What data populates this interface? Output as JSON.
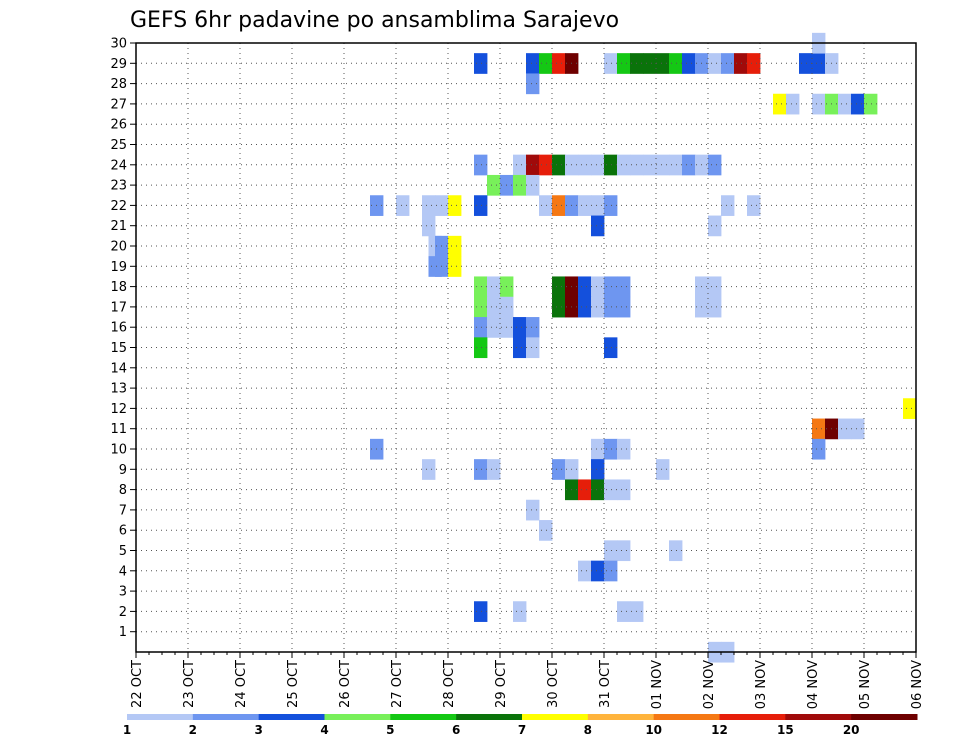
{
  "chart_data": {
    "type": "heatmap",
    "title": "GEFS 6hr padavine po ansamblima Sarajevo",
    "x_tick_labels": [
      "22 OCT",
      "23 OCT",
      "24 OCT",
      "25 OCT",
      "26 OCT",
      "27 OCT",
      "28 OCT",
      "29 OCT",
      "30 OCT",
      "31 OCT",
      "01 NOV",
      "02 NOV",
      "03 NOV",
      "04 NOV",
      "05 NOV",
      "06 NOV"
    ],
    "y_tick_labels": [
      "1",
      "2",
      "3",
      "4",
      "5",
      "6",
      "7",
      "8",
      "9",
      "10",
      "11",
      "12",
      "13",
      "14",
      "15",
      "16",
      "17",
      "18",
      "19",
      "20",
      "21",
      "22",
      "23",
      "24",
      "25",
      "26",
      "27",
      "28",
      "29",
      "30"
    ],
    "xlim": [
      0,
      60
    ],
    "ylim": [
      0,
      30
    ],
    "x_unit": "6-hour steps since 22 OCT 00Z",
    "grid": true,
    "colorbar": {
      "labels": [
        "1",
        "2",
        "3",
        "4",
        "5",
        "6",
        "7",
        "8",
        "10",
        "12",
        "15",
        "20"
      ],
      "colors": [
        "#b4c8f5",
        "#6e96f0",
        "#1450dc",
        "#78f05a",
        "#14c814",
        "#0a730a",
        "#ffff00",
        "#ffb43c",
        "#f57814",
        "#e61e0a",
        "#a00a0a",
        "#6e0000"
      ]
    },
    "cells": [
      {
        "m": 29,
        "t": [
          [
            26,
            2,
            0
          ],
          [
            30,
            2,
            0
          ],
          [
            31,
            4,
            0
          ],
          [
            32,
            9,
            0
          ],
          [
            33,
            11,
            0
          ],
          [
            36,
            0,
            0
          ],
          [
            37,
            4,
            0
          ],
          [
            38,
            5,
            0
          ],
          [
            39,
            5,
            0
          ],
          [
            40,
            5,
            0
          ],
          [
            41,
            4,
            0
          ],
          [
            42,
            2,
            0
          ],
          [
            43,
            1,
            0
          ],
          [
            44,
            0,
            0
          ],
          [
            45,
            1,
            0
          ],
          [
            46,
            10,
            0
          ],
          [
            47,
            9,
            0
          ],
          [
            51,
            2,
            0
          ],
          [
            52,
            2,
            0
          ],
          [
            53,
            0,
            0
          ]
        ]
      },
      {
        "m": 30,
        "t": [
          [
            52,
            0,
            0
          ]
        ]
      },
      {
        "m": 28,
        "t": [
          [
            30,
            1,
            0
          ]
        ]
      },
      {
        "m": 27,
        "t": [
          [
            49,
            6,
            0
          ],
          [
            50,
            0,
            0
          ],
          [
            52,
            0,
            0
          ],
          [
            53,
            3,
            0
          ],
          [
            54,
            0,
            0
          ],
          [
            55,
            2,
            0
          ],
          [
            56,
            3,
            0
          ]
        ]
      },
      {
        "m": 24,
        "t": [
          [
            26,
            1,
            0
          ],
          [
            29,
            0,
            0
          ],
          [
            30,
            10,
            0
          ],
          [
            31,
            9,
            0
          ],
          [
            32,
            5,
            0
          ],
          [
            33,
            0,
            0
          ],
          [
            34,
            0,
            0
          ],
          [
            35,
            0,
            0
          ],
          [
            36,
            5,
            0
          ],
          [
            37,
            0,
            0
          ],
          [
            38,
            0,
            0
          ],
          [
            39,
            0,
            0
          ],
          [
            40,
            0,
            0
          ],
          [
            41,
            0,
            0
          ],
          [
            42,
            1,
            0
          ],
          [
            43,
            0,
            0
          ],
          [
            44,
            1,
            0
          ]
        ]
      },
      {
        "m": 23,
        "t": [
          [
            27,
            3,
            0
          ],
          [
            28,
            1,
            0
          ],
          [
            29,
            3,
            0
          ],
          [
            30,
            0,
            0
          ]
        ]
      },
      {
        "m": 22,
        "t": [
          [
            18,
            1,
            0
          ],
          [
            20,
            0,
            0
          ],
          [
            22,
            0,
            0
          ],
          [
            23,
            0,
            0
          ],
          [
            24,
            6,
            0
          ],
          [
            26,
            2,
            0
          ],
          [
            31,
            0,
            0
          ],
          [
            32,
            8,
            0
          ],
          [
            33,
            1,
            0
          ],
          [
            34,
            0,
            0
          ],
          [
            35,
            0,
            0
          ],
          [
            36,
            1,
            0
          ],
          [
            45,
            0,
            0
          ],
          [
            47,
            0,
            0
          ]
        ]
      },
      {
        "m": 21,
        "t": [
          [
            22,
            0,
            0
          ],
          [
            35,
            2,
            0
          ],
          [
            44,
            0,
            0
          ]
        ]
      },
      {
        "m": 20,
        "t": [
          [
            22,
            0,
            0.5
          ],
          [
            23,
            1,
            0
          ],
          [
            24,
            6,
            0
          ]
        ]
      },
      {
        "m": 19,
        "t": [
          [
            22,
            1,
            0.5
          ],
          [
            23,
            1,
            0
          ],
          [
            24,
            6,
            0
          ]
        ]
      },
      {
        "m": 18,
        "t": [
          [
            26,
            3,
            0
          ],
          [
            27,
            0,
            0
          ],
          [
            28,
            3,
            0
          ],
          [
            32,
            5,
            0
          ],
          [
            33,
            11,
            0
          ],
          [
            34,
            2,
            0
          ],
          [
            35,
            0,
            0
          ],
          [
            36,
            1,
            0
          ],
          [
            37,
            1,
            0
          ],
          [
            43,
            0,
            0
          ],
          [
            44,
            0,
            0
          ]
        ]
      },
      {
        "m": 17,
        "t": [
          [
            26,
            3,
            0
          ],
          [
            27,
            0,
            0
          ],
          [
            28,
            0,
            0
          ],
          [
            32,
            5,
            0
          ],
          [
            33,
            11,
            0
          ],
          [
            34,
            2,
            0
          ],
          [
            35,
            0,
            0
          ],
          [
            36,
            1,
            0
          ],
          [
            37,
            1,
            0
          ],
          [
            43,
            0,
            0
          ],
          [
            44,
            0,
            0
          ]
        ]
      },
      {
        "m": 16,
        "t": [
          [
            26,
            1,
            0
          ],
          [
            27,
            0,
            0
          ],
          [
            28,
            0,
            0
          ],
          [
            29,
            2,
            0
          ],
          [
            30,
            1,
            0
          ]
        ]
      },
      {
        "m": 15,
        "t": [
          [
            26,
            4,
            0
          ],
          [
            29,
            2,
            0
          ],
          [
            30,
            0,
            0
          ],
          [
            36,
            2,
            0
          ]
        ]
      },
      {
        "m": 12,
        "t": [
          [
            59,
            6,
            0
          ]
        ]
      },
      {
        "m": 11,
        "t": [
          [
            52,
            8,
            0
          ],
          [
            53,
            11,
            0
          ],
          [
            54,
            0,
            0
          ],
          [
            55,
            0,
            0
          ]
        ]
      },
      {
        "m": 10,
        "t": [
          [
            18,
            1,
            0
          ],
          [
            35,
            0,
            0
          ],
          [
            36,
            1,
            0
          ],
          [
            37,
            0,
            0
          ],
          [
            52,
            1,
            0
          ]
        ]
      },
      {
        "m": 9,
        "t": [
          [
            22,
            0,
            0
          ],
          [
            26,
            1,
            0
          ],
          [
            27,
            0,
            0
          ],
          [
            32,
            1,
            0
          ],
          [
            33,
            0,
            0
          ],
          [
            35,
            2,
            0
          ],
          [
            40,
            0,
            0
          ]
        ]
      },
      {
        "m": 8,
        "t": [
          [
            33,
            5,
            0
          ],
          [
            34,
            9,
            0
          ],
          [
            35,
            5,
            0
          ],
          [
            36,
            0,
            0
          ],
          [
            37,
            0,
            0
          ]
        ]
      },
      {
        "m": 7,
        "t": [
          [
            30,
            0,
            0
          ]
        ]
      },
      {
        "m": 6,
        "t": [
          [
            31,
            0,
            0
          ]
        ]
      },
      {
        "m": 5,
        "t": [
          [
            36,
            0,
            0
          ],
          [
            37,
            0,
            0
          ],
          [
            41,
            0,
            0
          ]
        ]
      },
      {
        "m": 4,
        "t": [
          [
            34,
            0,
            0
          ],
          [
            35,
            2,
            0
          ],
          [
            36,
            1,
            0
          ]
        ]
      },
      {
        "m": 2,
        "t": [
          [
            26,
            2,
            0
          ],
          [
            29,
            0,
            0
          ],
          [
            37,
            0,
            0
          ],
          [
            38,
            0,
            0
          ]
        ]
      },
      {
        "m": 0,
        "t": [
          [
            44,
            0,
            0
          ],
          [
            45,
            0,
            0
          ]
        ]
      }
    ]
  }
}
